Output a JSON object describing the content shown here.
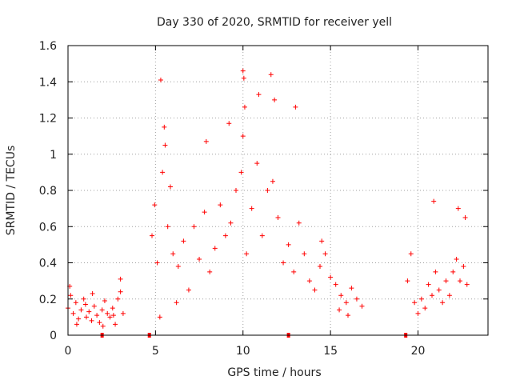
{
  "chart_data": {
    "type": "scatter",
    "title": "Day 330 of 2020, SRMTID for receiver yell",
    "xlabel": "GPS time / hours",
    "ylabel": "SRMTID / TECUs",
    "xlim": [
      0,
      24
    ],
    "ylim": [
      0,
      1.6
    ],
    "x_ticks": [
      0,
      5,
      10,
      15,
      20
    ],
    "x_tick_labels": [
      "0",
      "5",
      "10",
      "15",
      "20"
    ],
    "y_ticks": [
      0,
      0.2,
      0.4,
      0.6,
      0.8,
      1.0,
      1.2,
      1.4,
      1.6
    ],
    "y_tick_labels": [
      "0",
      "0.2",
      "0.4",
      "0.6",
      "0.8",
      "1",
      "1.2",
      "1.4",
      "1.6"
    ],
    "grid": true,
    "marker": "+",
    "series_color": "#ff0000",
    "gap_marker_x": [
      1.95,
      4.65,
      12.6,
      19.3
    ],
    "series": [
      {
        "name": "SRMTID",
        "x": [
          0.0,
          0.15,
          0.3,
          0.45,
          0.6,
          0.75,
          0.9,
          1.05,
          1.2,
          1.35,
          1.5,
          1.65,
          1.8,
          1.95,
          2.1,
          2.25,
          2.4,
          2.55,
          2.7,
          2.85,
          3.0,
          3.15,
          4.8,
          4.95,
          5.1,
          5.25,
          5.4,
          5.55,
          5.7,
          5.85,
          6.0,
          6.3,
          6.6,
          6.9,
          7.2,
          7.5,
          7.8,
          8.1,
          8.4,
          8.7,
          9.0,
          9.3,
          9.6,
          9.9,
          10.0,
          10.2,
          10.5,
          10.8,
          11.1,
          11.4,
          11.7,
          12.0,
          12.3,
          12.6,
          12.9,
          13.2,
          13.5,
          13.8,
          14.1,
          14.4,
          14.7,
          15.0,
          15.3,
          15.6,
          15.9,
          16.2,
          16.5,
          16.8,
          19.4,
          19.6,
          19.8,
          20.0,
          20.2,
          20.4,
          20.6,
          20.8,
          21.0,
          21.2,
          21.4,
          21.6,
          21.8,
          22.0,
          22.2,
          22.4,
          22.6,
          22.8,
          0.1,
          0.5,
          1.0,
          1.4,
          2.0,
          2.6,
          3.0,
          5.3,
          5.5,
          6.2,
          7.9,
          9.2,
          10.0,
          10.05,
          10.1,
          10.9,
          11.6,
          11.8,
          13.0,
          14.5,
          20.9,
          22.3,
          22.7,
          15.5,
          16.0
        ],
        "y": [
          0.15,
          0.22,
          0.12,
          0.18,
          0.09,
          0.14,
          0.2,
          0.1,
          0.13,
          0.08,
          0.16,
          0.11,
          0.07,
          0.14,
          0.19,
          0.12,
          0.1,
          0.15,
          0.06,
          0.2,
          0.24,
          0.12,
          0.55,
          0.72,
          0.4,
          0.1,
          0.9,
          1.05,
          0.6,
          0.82,
          0.45,
          0.38,
          0.52,
          0.25,
          0.6,
          0.42,
          0.68,
          0.35,
          0.48,
          0.72,
          0.55,
          0.62,
          0.8,
          0.9,
          1.1,
          0.45,
          0.7,
          0.95,
          0.55,
          0.8,
          0.85,
          0.65,
          0.4,
          0.5,
          0.35,
          0.62,
          0.45,
          0.3,
          0.25,
          0.38,
          0.45,
          0.32,
          0.28,
          0.22,
          0.18,
          0.26,
          0.2,
          0.16,
          0.3,
          0.45,
          0.18,
          0.12,
          0.2,
          0.15,
          0.28,
          0.22,
          0.35,
          0.25,
          0.18,
          0.3,
          0.22,
          0.35,
          0.42,
          0.3,
          0.38,
          0.28,
          0.27,
          0.06,
          0.17,
          0.23,
          0.05,
          0.11,
          0.31,
          1.41,
          1.15,
          0.18,
          1.07,
          1.17,
          1.46,
          1.42,
          1.26,
          1.33,
          1.44,
          1.3,
          1.26,
          0.52,
          0.74,
          0.7,
          0.65,
          0.14,
          0.11
        ]
      }
    ]
  }
}
